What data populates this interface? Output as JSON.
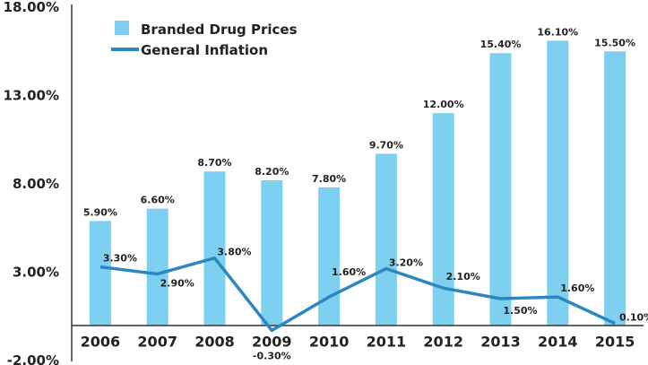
{
  "chart_data": {
    "type": "bar",
    "categories": [
      "2006",
      "2007",
      "2008",
      "2009",
      "2010",
      "2011",
      "2012",
      "2013",
      "2014",
      "2015"
    ],
    "series": [
      {
        "name": "Branded Drug Prices",
        "type": "bar",
        "color": "#7dd0f0",
        "values": [
          5.9,
          6.6,
          8.7,
          8.2,
          7.8,
          9.7,
          12.0,
          15.4,
          16.1,
          15.5
        ],
        "labels": [
          "5.90%",
          "6.60%",
          "8.70%",
          "8.20%",
          "7.80%",
          "9.70%",
          "12.00%",
          "15.40%",
          "16.10%",
          "15.50%"
        ]
      },
      {
        "name": "General Inflation",
        "type": "line",
        "color": "#2b87c0",
        "values": [
          3.3,
          2.9,
          3.8,
          -0.3,
          1.6,
          3.2,
          2.1,
          1.5,
          1.6,
          0.1
        ],
        "labels": [
          "3.30%",
          "2.90%",
          "3.80%",
          "-0.30%",
          "1.60%",
          "3.20%",
          "2.10%",
          "1.50%",
          "1.60%",
          "0.10%"
        ]
      }
    ],
    "ylim": [
      -2,
      18
    ],
    "yticks": [
      -2,
      3,
      8,
      13,
      18
    ],
    "ytick_labels": [
      "-2.00%",
      "3.00%",
      "8.00%",
      "13.00%",
      "18.00%"
    ],
    "legend_position": "top-left",
    "grid": false
  }
}
